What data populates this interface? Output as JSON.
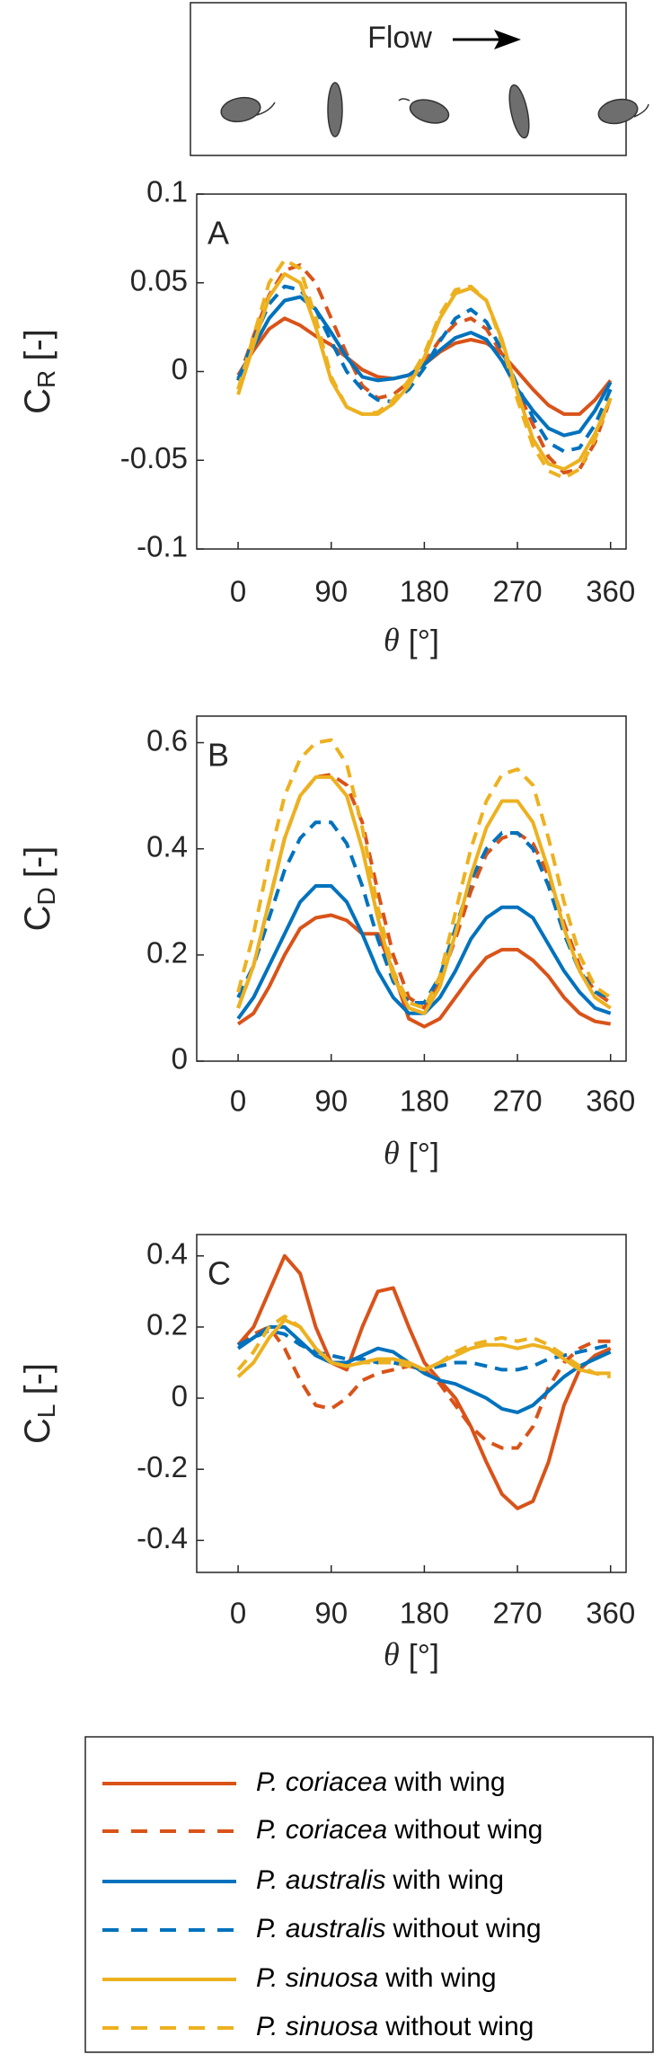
{
  "diagram": {
    "flow_label": "Flow"
  },
  "legend": {
    "entries": [
      {
        "species": "P. coriacea",
        "text": "with wing"
      },
      {
        "species": "P. coriacea",
        "text": "without wing"
      },
      {
        "species": "P. australis",
        "text": "with wing"
      },
      {
        "species": "P. australis",
        "text": "without wing"
      },
      {
        "species": "P. sinuosa",
        "text": "with wing"
      },
      {
        "species": "P. sinuosa",
        "text": "without wing"
      }
    ]
  },
  "chart_data": [
    {
      "type": "line",
      "panel_label": "A",
      "ylabel": {
        "symbol": "C",
        "subscript": "R",
        "unit": "[-]"
      },
      "xlabel": {
        "symbol": "θ",
        "unit": "[°]"
      },
      "x": [
        0,
        15,
        30,
        45,
        60,
        75,
        90,
        105,
        120,
        135,
        150,
        165,
        180,
        195,
        210,
        225,
        240,
        255,
        270,
        285,
        300,
        315,
        330,
        345,
        360
      ],
      "xlim": [
        -40,
        375
      ],
      "xticks": [
        0,
        90,
        180,
        270,
        360
      ],
      "ylim": [
        -0.1,
        0.1
      ],
      "yticks": [
        -0.1,
        -0.05,
        0,
        0.05,
        0.1
      ],
      "series": [
        {
          "color": "#d95319",
          "dashed": false,
          "values": [
            -0.002,
            0.012,
            0.024,
            0.03,
            0.026,
            0.02,
            0.015,
            0.008,
            0.001,
            -0.003,
            -0.004,
            -0.002,
            0.004,
            0.011,
            0.016,
            0.018,
            0.016,
            0.01,
            0.0,
            -0.01,
            -0.019,
            -0.024,
            -0.024,
            -0.016,
            -0.005
          ]
        },
        {
          "color": "#d95319",
          "dashed": true,
          "values": [
            -0.005,
            0.02,
            0.043,
            0.057,
            0.06,
            0.05,
            0.03,
            0.01,
            -0.008,
            -0.015,
            -0.013,
            -0.006,
            0.005,
            0.018,
            0.027,
            0.03,
            0.024,
            0.01,
            -0.01,
            -0.03,
            -0.048,
            -0.057,
            -0.055,
            -0.04,
            -0.015
          ]
        },
        {
          "color": "#0072bd",
          "dashed": false,
          "values": [
            -0.004,
            0.014,
            0.03,
            0.04,
            0.042,
            0.035,
            0.022,
            0.008,
            -0.003,
            -0.005,
            -0.004,
            -0.002,
            0.004,
            0.012,
            0.019,
            0.022,
            0.018,
            0.006,
            -0.01,
            -0.022,
            -0.032,
            -0.036,
            -0.034,
            -0.022,
            -0.006
          ]
        },
        {
          "color": "#0072bd",
          "dashed": true,
          "values": [
            -0.005,
            0.018,
            0.038,
            0.048,
            0.046,
            0.035,
            0.017,
            0.0,
            -0.01,
            -0.016,
            -0.017,
            -0.01,
            0.002,
            0.017,
            0.03,
            0.035,
            0.028,
            0.012,
            -0.008,
            -0.026,
            -0.04,
            -0.045,
            -0.043,
            -0.03,
            -0.01
          ]
        },
        {
          "color": "#edb120",
          "dashed": false,
          "values": [
            -0.013,
            0.015,
            0.042,
            0.055,
            0.05,
            0.025,
            -0.005,
            -0.02,
            -0.024,
            -0.024,
            -0.018,
            -0.008,
            0.008,
            0.03,
            0.044,
            0.047,
            0.04,
            0.018,
            -0.012,
            -0.038,
            -0.052,
            -0.055,
            -0.05,
            -0.035,
            -0.015
          ]
        },
        {
          "color": "#edb120",
          "dashed": true,
          "values": [
            -0.01,
            0.02,
            0.05,
            0.063,
            0.058,
            0.03,
            -0.003,
            -0.02,
            -0.024,
            -0.023,
            -0.016,
            -0.005,
            0.01,
            0.032,
            0.046,
            0.048,
            0.04,
            0.016,
            -0.016,
            -0.042,
            -0.056,
            -0.06,
            -0.055,
            -0.038,
            -0.015
          ]
        }
      ]
    },
    {
      "type": "line",
      "panel_label": "B",
      "ylabel": {
        "symbol": "C",
        "subscript": "D",
        "unit": "[-]"
      },
      "xlabel": {
        "symbol": "θ",
        "unit": "[°]"
      },
      "x": [
        0,
        15,
        30,
        45,
        60,
        75,
        90,
        105,
        120,
        135,
        150,
        165,
        180,
        195,
        210,
        225,
        240,
        255,
        270,
        285,
        300,
        315,
        330,
        345,
        360
      ],
      "xlim": [
        -40,
        375
      ],
      "xticks": [
        0,
        90,
        180,
        270,
        360
      ],
      "ylim": [
        0,
        0.65
      ],
      "yticks": [
        0,
        0.2,
        0.4,
        0.6
      ],
      "series": [
        {
          "color": "#d95319",
          "dashed": false,
          "values": [
            0.07,
            0.09,
            0.14,
            0.2,
            0.25,
            0.27,
            0.275,
            0.265,
            0.24,
            0.24,
            0.17,
            0.08,
            0.065,
            0.08,
            0.12,
            0.16,
            0.195,
            0.21,
            0.21,
            0.19,
            0.16,
            0.12,
            0.09,
            0.075,
            0.07
          ]
        },
        {
          "color": "#d95319",
          "dashed": true,
          "values": [
            0.1,
            0.18,
            0.3,
            0.42,
            0.5,
            0.535,
            0.54,
            0.52,
            0.45,
            0.32,
            0.2,
            0.12,
            0.1,
            0.15,
            0.23,
            0.32,
            0.39,
            0.42,
            0.43,
            0.41,
            0.35,
            0.26,
            0.18,
            0.13,
            0.11
          ]
        },
        {
          "color": "#0072bd",
          "dashed": false,
          "values": [
            0.08,
            0.12,
            0.18,
            0.24,
            0.3,
            0.33,
            0.33,
            0.3,
            0.24,
            0.17,
            0.12,
            0.09,
            0.09,
            0.12,
            0.17,
            0.23,
            0.27,
            0.29,
            0.29,
            0.27,
            0.22,
            0.17,
            0.13,
            0.1,
            0.09
          ]
        },
        {
          "color": "#0072bd",
          "dashed": true,
          "values": [
            0.12,
            0.18,
            0.27,
            0.36,
            0.42,
            0.45,
            0.45,
            0.41,
            0.33,
            0.23,
            0.15,
            0.11,
            0.11,
            0.16,
            0.25,
            0.34,
            0.4,
            0.43,
            0.43,
            0.4,
            0.33,
            0.24,
            0.17,
            0.13,
            0.12
          ]
        },
        {
          "color": "#edb120",
          "dashed": false,
          "values": [
            0.1,
            0.18,
            0.3,
            0.42,
            0.5,
            0.535,
            0.535,
            0.5,
            0.4,
            0.27,
            0.16,
            0.1,
            0.09,
            0.14,
            0.24,
            0.35,
            0.44,
            0.49,
            0.49,
            0.45,
            0.36,
            0.25,
            0.17,
            0.12,
            0.1
          ]
        },
        {
          "color": "#edb120",
          "dashed": true,
          "values": [
            0.13,
            0.24,
            0.38,
            0.5,
            0.57,
            0.6,
            0.605,
            0.56,
            0.44,
            0.29,
            0.17,
            0.11,
            0.1,
            0.16,
            0.28,
            0.4,
            0.49,
            0.54,
            0.55,
            0.52,
            0.42,
            0.3,
            0.2,
            0.14,
            0.12
          ]
        }
      ]
    },
    {
      "type": "line",
      "panel_label": "C",
      "ylabel": {
        "symbol": "C",
        "subscript": "L",
        "unit": "[-]"
      },
      "xlabel": {
        "symbol": "θ",
        "unit": "[°]"
      },
      "x": [
        0,
        15,
        30,
        45,
        60,
        75,
        90,
        105,
        120,
        135,
        150,
        165,
        180,
        195,
        210,
        225,
        240,
        255,
        270,
        285,
        300,
        315,
        330,
        345,
        360
      ],
      "xlim": [
        -40,
        375
      ],
      "xticks": [
        0,
        90,
        180,
        270,
        360
      ],
      "ylim": [
        -0.49,
        0.46
      ],
      "yticks": [
        -0.4,
        -0.2,
        0,
        0.2,
        0.4
      ],
      "series": [
        {
          "color": "#d95319",
          "dashed": false,
          "values": [
            0.15,
            0.2,
            0.3,
            0.4,
            0.35,
            0.2,
            0.1,
            0.08,
            0.2,
            0.3,
            0.31,
            0.2,
            0.1,
            0.05,
            0.0,
            -0.08,
            -0.18,
            -0.27,
            -0.31,
            -0.29,
            -0.18,
            -0.02,
            0.08,
            0.12,
            0.14
          ]
        },
        {
          "color": "#d95319",
          "dashed": true,
          "values": [
            0.15,
            0.18,
            0.2,
            0.14,
            0.05,
            -0.02,
            -0.03,
            0.0,
            0.05,
            0.07,
            0.08,
            0.09,
            0.08,
            0.04,
            -0.02,
            -0.08,
            -0.12,
            -0.14,
            -0.14,
            -0.08,
            0.03,
            0.1,
            0.14,
            0.16,
            0.16
          ]
        },
        {
          "color": "#0072bd",
          "dashed": false,
          "values": [
            0.14,
            0.17,
            0.2,
            0.2,
            0.16,
            0.12,
            0.1,
            0.1,
            0.12,
            0.14,
            0.13,
            0.1,
            0.07,
            0.05,
            0.04,
            0.02,
            0.0,
            -0.03,
            -0.04,
            -0.02,
            0.02,
            0.06,
            0.09,
            0.11,
            0.13
          ]
        },
        {
          "color": "#0072bd",
          "dashed": true,
          "values": [
            0.15,
            0.17,
            0.19,
            0.18,
            0.15,
            0.13,
            0.12,
            0.11,
            0.11,
            0.1,
            0.1,
            0.09,
            0.08,
            0.09,
            0.1,
            0.1,
            0.09,
            0.08,
            0.08,
            0.09,
            0.11,
            0.12,
            0.13,
            0.14,
            0.15
          ]
        },
        {
          "color": "#edb120",
          "dashed": false,
          "values": [
            0.06,
            0.1,
            0.17,
            0.22,
            0.2,
            0.14,
            0.1,
            0.09,
            0.1,
            0.11,
            0.11,
            0.1,
            0.08,
            0.1,
            0.12,
            0.14,
            0.15,
            0.15,
            0.14,
            0.15,
            0.14,
            0.11,
            0.08,
            0.07,
            0.07
          ]
        },
        {
          "color": "#edb120",
          "dashed": true,
          "values": [
            0.08,
            0.13,
            0.2,
            0.23,
            0.2,
            0.14,
            0.1,
            0.09,
            0.1,
            0.1,
            0.1,
            0.09,
            0.08,
            0.1,
            0.13,
            0.15,
            0.16,
            0.17,
            0.16,
            0.17,
            0.15,
            0.12,
            0.09,
            0.07,
            0.06
          ]
        }
      ]
    }
  ]
}
